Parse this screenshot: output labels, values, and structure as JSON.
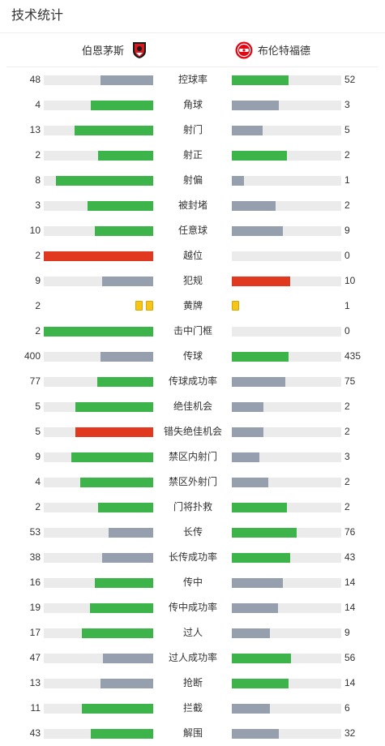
{
  "header": {
    "title": "技术统计"
  },
  "teams": {
    "home": {
      "name": "伯恩茅斯",
      "badge_icon": "afc-bournemouth-badge-icon"
    },
    "away": {
      "name": "布伦特福德",
      "badge_icon": "brentford-badge-icon"
    }
  },
  "colors": {
    "better": "#3cb449",
    "worse": "#959fad",
    "red": "#e0391f",
    "track": "#ebebeb",
    "yellow_card": "#f5c518"
  },
  "stats": [
    {
      "label": "控球率",
      "home": "48",
      "away": "52",
      "home_fill": 0.48,
      "away_fill": 0.52,
      "home_color": "worse",
      "away_color": "better"
    },
    {
      "label": "角球",
      "home": "4",
      "away": "3",
      "home_fill": 0.57,
      "away_fill": 0.43,
      "home_color": "better",
      "away_color": "worse"
    },
    {
      "label": "射门",
      "home": "13",
      "away": "5",
      "home_fill": 0.72,
      "away_fill": 0.28,
      "home_color": "better",
      "away_color": "worse"
    },
    {
      "label": "射正",
      "home": "2",
      "away": "2",
      "home_fill": 0.5,
      "away_fill": 0.5,
      "home_color": "better",
      "away_color": "better"
    },
    {
      "label": "射偏",
      "home": "8",
      "away": "1",
      "home_fill": 0.89,
      "away_fill": 0.11,
      "home_color": "better",
      "away_color": "worse"
    },
    {
      "label": "被封堵",
      "home": "3",
      "away": "2",
      "home_fill": 0.6,
      "away_fill": 0.4,
      "home_color": "better",
      "away_color": "worse"
    },
    {
      "label": "任意球",
      "home": "10",
      "away": "9",
      "home_fill": 0.53,
      "away_fill": 0.47,
      "home_color": "better",
      "away_color": "worse"
    },
    {
      "label": "越位",
      "home": "2",
      "away": "0",
      "home_fill": 1.0,
      "away_fill": 0.0,
      "home_color": "red",
      "away_color": "worse"
    },
    {
      "label": "犯规",
      "home": "9",
      "away": "10",
      "home_fill": 0.47,
      "away_fill": 0.53,
      "home_color": "worse",
      "away_color": "red"
    },
    {
      "label": "黄牌",
      "home": "2",
      "away": "1",
      "type": "cards",
      "home_cards": 2,
      "away_cards": 1
    },
    {
      "label": "击中门框",
      "home": "2",
      "away": "0",
      "home_fill": 1.0,
      "away_fill": 0.0,
      "home_color": "better",
      "away_color": "worse"
    },
    {
      "label": "传球",
      "home": "400",
      "away": "435",
      "home_fill": 0.48,
      "away_fill": 0.52,
      "home_color": "worse",
      "away_color": "better"
    },
    {
      "label": "传球成功率",
      "home": "77",
      "away": "75",
      "home_fill": 0.51,
      "away_fill": 0.49,
      "home_color": "better",
      "away_color": "worse"
    },
    {
      "label": "绝佳机会",
      "home": "5",
      "away": "2",
      "home_fill": 0.71,
      "away_fill": 0.29,
      "home_color": "better",
      "away_color": "worse"
    },
    {
      "label": "错失绝佳机会",
      "home": "5",
      "away": "2",
      "home_fill": 0.71,
      "away_fill": 0.29,
      "home_color": "red",
      "away_color": "worse"
    },
    {
      "label": "禁区内射门",
      "home": "9",
      "away": "3",
      "home_fill": 0.75,
      "away_fill": 0.25,
      "home_color": "better",
      "away_color": "worse"
    },
    {
      "label": "禁区外射门",
      "home": "4",
      "away": "2",
      "home_fill": 0.67,
      "away_fill": 0.33,
      "home_color": "better",
      "away_color": "worse"
    },
    {
      "label": "门将扑救",
      "home": "2",
      "away": "2",
      "home_fill": 0.5,
      "away_fill": 0.5,
      "home_color": "better",
      "away_color": "better"
    },
    {
      "label": "长传",
      "home": "53",
      "away": "76",
      "home_fill": 0.41,
      "away_fill": 0.59,
      "home_color": "worse",
      "away_color": "better"
    },
    {
      "label": "长传成功率",
      "home": "38",
      "away": "43",
      "home_fill": 0.47,
      "away_fill": 0.53,
      "home_color": "worse",
      "away_color": "better"
    },
    {
      "label": "传中",
      "home": "16",
      "away": "14",
      "home_fill": 0.53,
      "away_fill": 0.47,
      "home_color": "better",
      "away_color": "worse"
    },
    {
      "label": "传中成功率",
      "home": "19",
      "away": "14",
      "home_fill": 0.58,
      "away_fill": 0.42,
      "home_color": "better",
      "away_color": "worse"
    },
    {
      "label": "过人",
      "home": "17",
      "away": "9",
      "home_fill": 0.65,
      "away_fill": 0.35,
      "home_color": "better",
      "away_color": "worse"
    },
    {
      "label": "过人成功率",
      "home": "47",
      "away": "56",
      "home_fill": 0.46,
      "away_fill": 0.54,
      "home_color": "worse",
      "away_color": "better"
    },
    {
      "label": "抢断",
      "home": "13",
      "away": "14",
      "home_fill": 0.48,
      "away_fill": 0.52,
      "home_color": "worse",
      "away_color": "better"
    },
    {
      "label": "拦截",
      "home": "11",
      "away": "6",
      "home_fill": 0.65,
      "away_fill": 0.35,
      "home_color": "better",
      "away_color": "worse"
    },
    {
      "label": "解围",
      "home": "43",
      "away": "32",
      "home_fill": 0.57,
      "away_fill": 0.43,
      "home_color": "better",
      "away_color": "worse"
    }
  ]
}
